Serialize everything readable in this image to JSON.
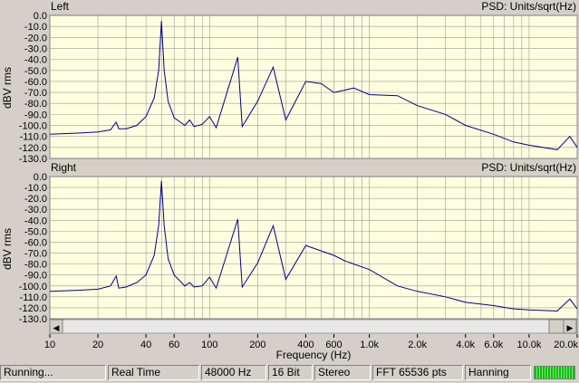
{
  "panels": [
    {
      "channel_label": "Left",
      "psd_label": "PSD: Units/sqrt(Hz)",
      "ylabel": "dBV rms"
    },
    {
      "channel_label": "Right",
      "psd_label": "PSD: Units/sqrt(Hz)",
      "ylabel": "dBV rms"
    }
  ],
  "xlabel": "Frequency (Hz)",
  "y_ticks": [
    "0.0",
    "-10.0",
    "-20.0",
    "-30.0",
    "-40.0",
    "-50.0",
    "-60.0",
    "-70.0",
    "-80.0",
    "-90.0",
    "-100.0",
    "-110.0",
    "-120.0",
    "-130.0"
  ],
  "x_ticks": [
    {
      "f": 10,
      "label": "10"
    },
    {
      "f": 20,
      "label": "20"
    },
    {
      "f": 40,
      "label": "40"
    },
    {
      "f": 60,
      "label": "60"
    },
    {
      "f": 100,
      "label": "100"
    },
    {
      "f": 200,
      "label": "200"
    },
    {
      "f": 400,
      "label": "400"
    },
    {
      "f": 600,
      "label": "600"
    },
    {
      "f": 1000,
      "label": "1.0k"
    },
    {
      "f": 2000,
      "label": "2.0k"
    },
    {
      "f": 4000,
      "label": "4.0k"
    },
    {
      "f": 6000,
      "label": "6.0k"
    },
    {
      "f": 10000,
      "label": "10.0k"
    },
    {
      "f": 20000,
      "label": "20.0k"
    }
  ],
  "scrollbar": {
    "left_arrow": "◀",
    "right_arrow": "▶"
  },
  "status": {
    "state": "Running...",
    "mode": "Real Time",
    "sample_rate": "48000 Hz",
    "bit_depth": "16 Bit",
    "channels": "Stereo",
    "fft_size": "FFT 65536 pts",
    "window": "Hanning"
  },
  "level_meter_fraction": 1.0,
  "colors": {
    "plot_bg": "#ffffe0",
    "grid": "#909090",
    "trace": "#00008b",
    "chrome": "#d4d0c8"
  },
  "chart_data": {
    "type": "line",
    "x_scale": "log",
    "xlim": [
      10,
      20000
    ],
    "ylim": [
      -130,
      0
    ],
    "series": [
      {
        "channel": "Left",
        "x": [
          10,
          15,
          20,
          24,
          26,
          27,
          30,
          35,
          40,
          45,
          48,
          50,
          52,
          55,
          60,
          70,
          75,
          80,
          90,
          100,
          110,
          150,
          160,
          200,
          250,
          300,
          400,
          500,
          600,
          700,
          800,
          1000,
          1500,
          2000,
          3000,
          4000,
          6000,
          8000,
          10000,
          15000,
          18000,
          20000
        ],
        "y": [
          -108,
          -107,
          -106,
          -104,
          -97,
          -103,
          -103,
          -100,
          -92,
          -75,
          -50,
          -5,
          -50,
          -78,
          -93,
          -100,
          -95,
          -101,
          -99,
          -92,
          -102,
          -38,
          -101,
          -78,
          -47,
          -95,
          -60,
          -62,
          -70,
          -68,
          -66,
          -72,
          -73,
          -82,
          -90,
          -100,
          -108,
          -115,
          -118,
          -122,
          -110,
          -120
        ]
      },
      {
        "channel": "Right",
        "x": [
          10,
          15,
          20,
          24,
          26,
          27,
          30,
          35,
          40,
          45,
          48,
          50,
          52,
          55,
          60,
          70,
          75,
          80,
          90,
          100,
          110,
          150,
          160,
          200,
          250,
          300,
          400,
          500,
          600,
          700,
          800,
          1000,
          1500,
          2000,
          3000,
          4000,
          6000,
          8000,
          10000,
          15000,
          18000,
          20000
        ],
        "y": [
          -105,
          -104,
          -103,
          -100,
          -91,
          -102,
          -101,
          -97,
          -90,
          -72,
          -45,
          -4,
          -45,
          -75,
          -90,
          -100,
          -97,
          -101,
          -100,
          -92,
          -102,
          -39,
          -101,
          -79,
          -45,
          -94,
          -63,
          -68,
          -72,
          -77,
          -80,
          -85,
          -100,
          -105,
          -110,
          -115,
          -118,
          -121,
          -122,
          -123,
          -112,
          -121
        ]
      }
    ]
  }
}
